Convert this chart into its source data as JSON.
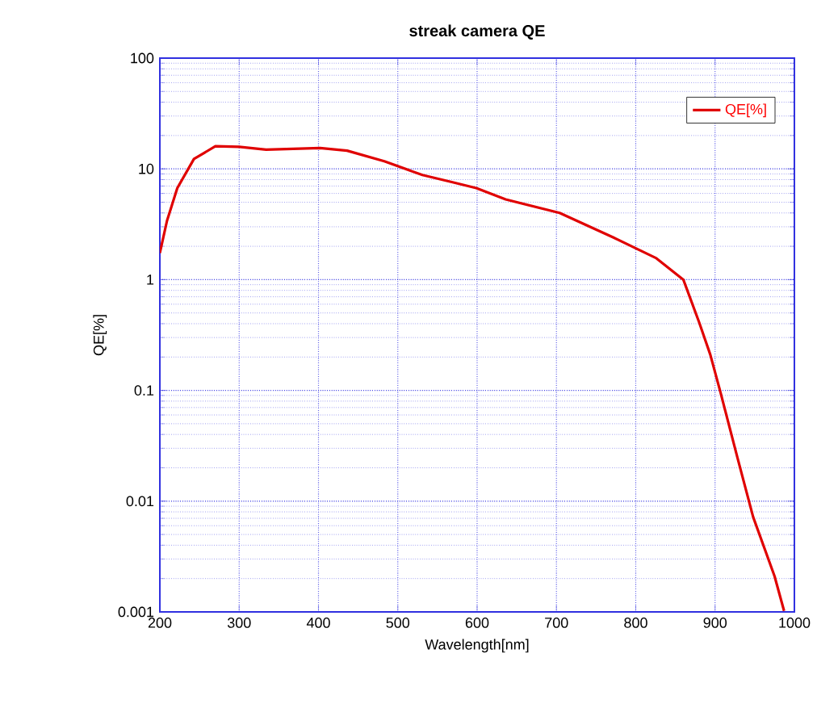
{
  "chart_data": {
    "type": "line",
    "title": "streak camera QE",
    "xlabel": "Wavelength[nm]",
    "ylabel": "QE[%]",
    "log": "y",
    "grid": true,
    "legend": "top right",
    "line_style": "solid",
    "marker": "none",
    "xlim": [
      200,
      1000
    ],
    "xticks": [
      200,
      300,
      400,
      500,
      600,
      700,
      800,
      900,
      1000
    ],
    "ylim": [
      0.001,
      100
    ],
    "yticks": [
      0.001,
      0.01,
      0.1,
      1,
      10,
      100
    ],
    "series": [
      {
        "name": "QE[%]",
        "color": "#e00000",
        "x": [
          200,
          209,
          222,
          243,
          270,
          300,
          334,
          402,
          436,
          483,
          531,
          568,
          599,
          636,
          704,
          772,
          826,
          860,
          880,
          894,
          907,
          928,
          948,
          975,
          987
        ],
        "values": [
          1.74,
          3.4,
          6.7,
          12.3,
          16,
          15.8,
          14.9,
          15.4,
          14.6,
          11.7,
          8.8,
          7.6,
          6.7,
          5.3,
          4.0,
          2.4,
          1.56,
          1.0,
          0.41,
          0.21,
          0.095,
          0.025,
          0.0072,
          0.0021,
          0.00102
        ]
      }
    ]
  }
}
